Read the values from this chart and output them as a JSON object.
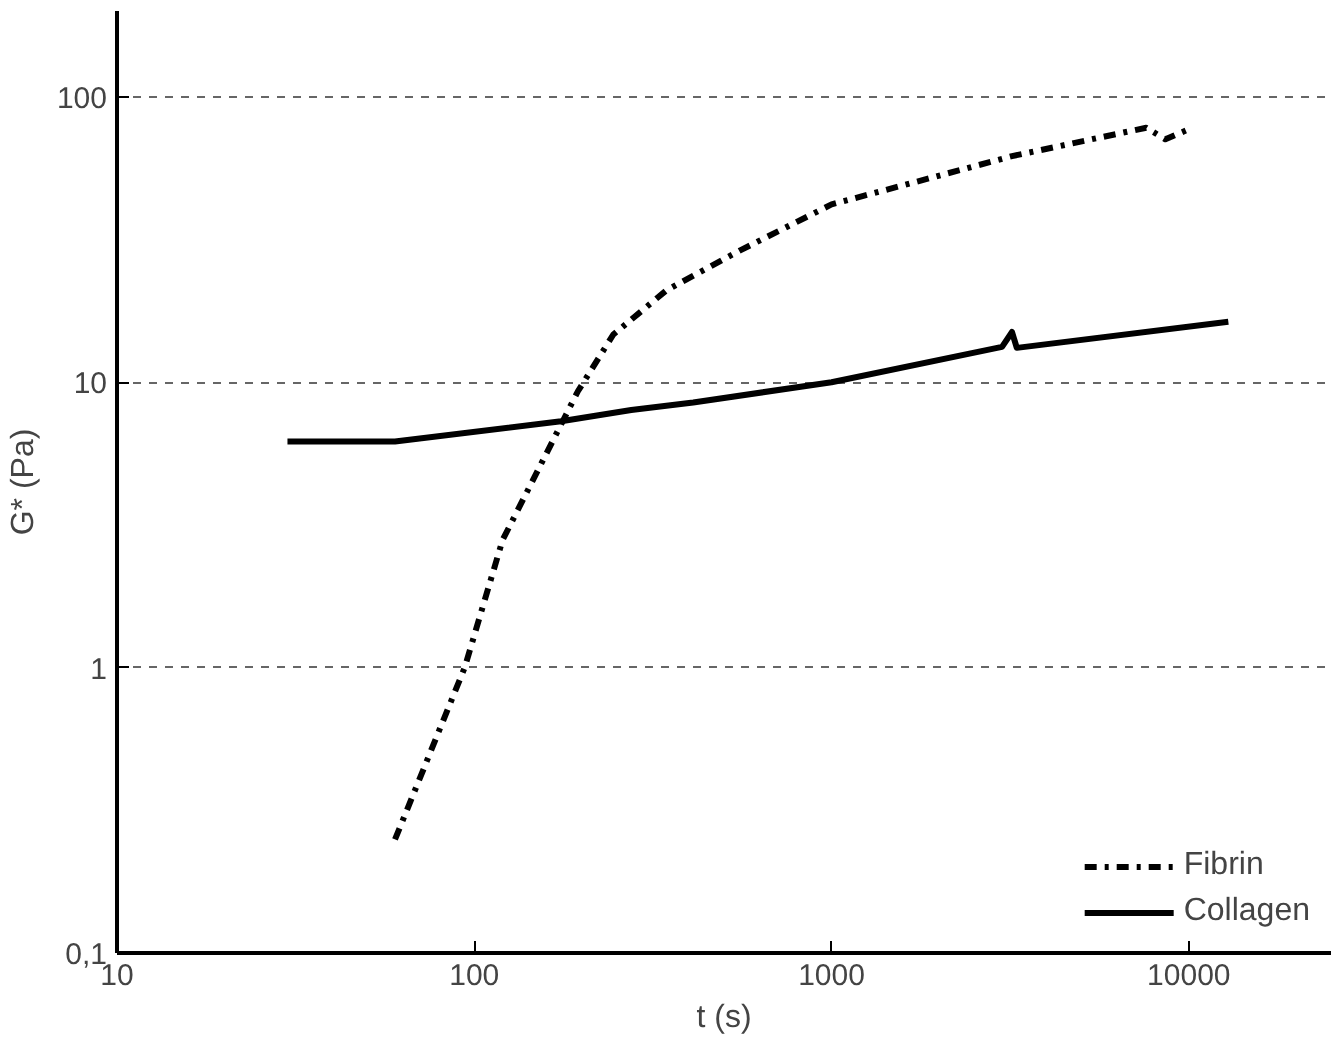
{
  "chart_data": {
    "type": "line",
    "xlabel": "t (s)",
    "ylabel": "G* (Pa)",
    "log": "xy",
    "xlim": [
      10,
      25000
    ],
    "ylim": [
      0.1,
      200
    ],
    "xticks": [
      10,
      100,
      1000,
      10000
    ],
    "yticks": [
      {
        "value": 0.1,
        "label": "0,1"
      },
      1,
      10,
      100
    ],
    "grid": "y",
    "legend": "bottom right",
    "series": [
      {
        "name": "Fibrin",
        "color": "#000000",
        "line_style": "dashdot",
        "x": [
          60,
          94,
          120,
          195,
          245,
          345,
          555,
          1000,
          3200,
          7600,
          8600,
          10000
        ],
        "values": [
          0.25,
          1.0,
          2.8,
          9.3,
          14.7,
          21,
          29,
          42,
          62,
          78,
          71,
          77
        ]
      },
      {
        "name": "Collagen",
        "color": "#000000",
        "line_style": "solid",
        "x": [
          30,
          60,
          175,
          275,
          410,
          1000,
          3000,
          3200,
          3300,
          12900
        ],
        "values": [
          6.2,
          6.2,
          7.3,
          8.0,
          8.5,
          10.0,
          13.3,
          15,
          13.2,
          16.3
        ]
      }
    ]
  }
}
